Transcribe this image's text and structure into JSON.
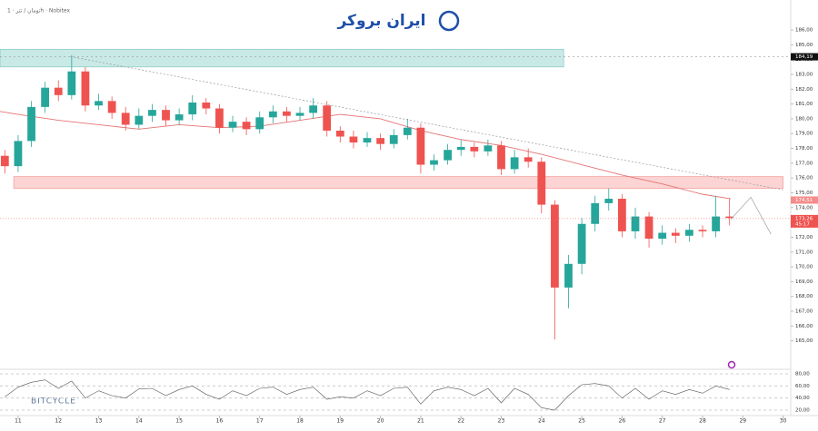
{
  "header": {
    "symbol": "تومان / تتر · 1h · Nobitex",
    "logo": "ایران بروکر",
    "watermark": "BITCYCLE"
  },
  "chart_data": {
    "type": "candlestick",
    "xlim": [
      10.55,
      30.19
    ],
    "xticks": [
      11,
      12,
      13,
      14,
      15,
      16,
      17,
      18,
      19,
      20,
      21,
      22,
      23,
      24,
      25,
      26,
      27,
      28,
      29,
      30
    ],
    "ylim": [
      163.2,
      186.8
    ],
    "yticks": [
      {
        "value": 186,
        "label": "186,00"
      },
      {
        "value": 185,
        "label": "185,00"
      },
      {
        "value": 184,
        "label": "184,00"
      },
      {
        "value": 183,
        "label": "183,00"
      },
      {
        "value": 182,
        "label": "182,00"
      },
      {
        "value": 181,
        "label": "181,00"
      },
      {
        "value": 180,
        "label": "180,00"
      },
      {
        "value": 179,
        "label": "179,00"
      },
      {
        "value": 178,
        "label": "178,00"
      },
      {
        "value": 177,
        "label": "177,00"
      },
      {
        "value": 176,
        "label": "176,00"
      },
      {
        "value": 175,
        "label": "175,00"
      },
      {
        "value": 174,
        "label": "174,00"
      },
      {
        "value": 173,
        "label": "173,00"
      },
      {
        "value": 172,
        "label": "172,00"
      },
      {
        "value": 171,
        "label": "171,00"
      },
      {
        "value": 170,
        "label": "170,00"
      },
      {
        "value": 169,
        "label": "169,00"
      },
      {
        "value": 168,
        "label": "168,00"
      },
      {
        "value": 167,
        "label": "167,00"
      },
      {
        "value": 166,
        "label": "166,00"
      },
      {
        "value": 165,
        "label": "165,00"
      }
    ],
    "up_color": "#26a69a",
    "down_color": "#ef5350",
    "candles": {
      "x": [
        10.67,
        11,
        11.33,
        11.67,
        12,
        12.33,
        12.67,
        13,
        13.33,
        13.67,
        14,
        14.33,
        14.67,
        15,
        15.33,
        15.67,
        16,
        16.33,
        16.67,
        17,
        17.33,
        17.67,
        18,
        18.33,
        18.67,
        19,
        19.33,
        19.67,
        20,
        20.33,
        20.67,
        21,
        21.33,
        21.67,
        22,
        22.33,
        22.67,
        23,
        23.33,
        23.67,
        24,
        24.33,
        24.67,
        25,
        25.33,
        25.67,
        26,
        26.33,
        26.67,
        27,
        27.33,
        27.67,
        28,
        28.33,
        28.67
      ],
      "open": [
        177.5,
        176.8,
        178.5,
        180.8,
        182.1,
        181.6,
        183.2,
        180.9,
        181.2,
        180.4,
        179.6,
        180.2,
        180.6,
        179.9,
        180.3,
        181.1,
        180.7,
        179.4,
        179.8,
        179.3,
        180.1,
        180.5,
        180.2,
        180.4,
        180.9,
        179.2,
        178.8,
        178.4,
        178.7,
        178.3,
        178.9,
        179.4,
        176.9,
        177.2,
        177.9,
        178.1,
        177.8,
        178.2,
        176.6,
        177.4,
        177.1,
        174.2,
        168.6,
        170.2,
        172.9,
        174.3,
        174.6,
        172.4,
        173.4,
        171.9,
        172.3,
        172.1,
        172.5,
        172.4,
        173.4
      ],
      "high": [
        177.9,
        178.9,
        181.2,
        182.5,
        182.6,
        184.3,
        183.5,
        181.7,
        181.5,
        180.8,
        180.7,
        181.0,
        180.9,
        180.7,
        181.6,
        181.4,
        181.0,
        180.2,
        180.1,
        180.5,
        180.9,
        180.8,
        180.8,
        181.4,
        181.2,
        179.5,
        179.2,
        179.1,
        179.0,
        179.3,
        180.0,
        179.7,
        177.6,
        178.3,
        178.6,
        178.4,
        178.6,
        178.5,
        177.9,
        178.0,
        177.4,
        174.5,
        170.8,
        173.3,
        174.8,
        175.3,
        174.9,
        174.0,
        173.7,
        172.8,
        172.6,
        172.9,
        172.8,
        174.8,
        174.6
      ],
      "low": [
        176.3,
        176.4,
        178.1,
        180.4,
        181.2,
        181.3,
        180.5,
        180.6,
        180.0,
        179.2,
        179.3,
        179.8,
        179.5,
        179.6,
        179.9,
        180.3,
        179.0,
        179.1,
        178.9,
        179.0,
        179.7,
        179.8,
        179.9,
        180.0,
        178.8,
        178.4,
        178.0,
        178.1,
        177.9,
        178.0,
        178.6,
        176.3,
        176.5,
        176.9,
        177.5,
        177.4,
        177.5,
        176.2,
        176.3,
        176.7,
        173.6,
        165.1,
        167.2,
        169.5,
        172.4,
        173.8,
        172.0,
        171.9,
        171.3,
        171.5,
        171.6,
        171.7,
        172.0,
        172.0,
        172.8
      ],
      "close": [
        176.8,
        178.5,
        180.8,
        182.1,
        181.6,
        183.2,
        180.9,
        181.2,
        180.4,
        179.6,
        180.2,
        180.6,
        179.9,
        180.3,
        181.1,
        180.7,
        179.4,
        179.8,
        179.3,
        180.1,
        180.5,
        180.2,
        180.4,
        180.9,
        179.2,
        178.8,
        178.4,
        178.7,
        178.3,
        178.9,
        179.4,
        176.9,
        177.2,
        177.9,
        178.1,
        177.8,
        178.2,
        176.6,
        177.4,
        177.1,
        174.2,
        168.6,
        170.2,
        172.9,
        174.3,
        174.6,
        172.4,
        173.4,
        171.9,
        172.3,
        172.1,
        172.5,
        172.4,
        173.4,
        173.3
      ]
    },
    "moving_average": {
      "color": "#e57373",
      "x": [
        10.55,
        11,
        12,
        13,
        14,
        15,
        16,
        17,
        18,
        19,
        20,
        21,
        22,
        23,
        24,
        25,
        26,
        27,
        28,
        28.7
      ],
      "values": [
        180.5,
        180.3,
        179.9,
        179.6,
        179.3,
        179.6,
        179.4,
        179.5,
        179.9,
        180.3,
        180.0,
        179.2,
        178.6,
        178.2,
        177.6,
        176.9,
        176.2,
        175.6,
        174.9,
        174.6
      ]
    },
    "zones": [
      {
        "color": "#26a69a",
        "x": [
          10.55,
          24.55
        ],
        "y": [
          183.5,
          184.7
        ]
      },
      {
        "color": "#ef5350",
        "x": [
          10.89,
          30.0
        ],
        "y": [
          175.3,
          176.1
        ]
      }
    ],
    "trend_line": {
      "x": [
        12.3,
        30.0
      ],
      "y": [
        184.2,
        175.2
      ]
    },
    "projection": {
      "x": [
        28.7,
        29.2,
        29.7
      ],
      "y": [
        173.2,
        174.7,
        172.2
      ]
    },
    "level": {
      "value": 184.19,
      "label": "184,19"
    },
    "last_price": {
      "value": 173.26,
      "label": "173,26",
      "countdown": "45:17"
    },
    "upper_price": {
      "value": 174.51,
      "label": "174,51"
    },
    "rsi": {
      "ylim": [
        12.5,
        87.5
      ],
      "yticks": [
        {
          "value": 80,
          "label": "80,00"
        },
        {
          "value": 60,
          "label": "60,00"
        },
        {
          "value": 40,
          "label": "40,00"
        },
        {
          "value": 20,
          "label": "20,00"
        }
      ],
      "values": [
        42,
        58,
        66,
        70,
        56,
        68,
        40,
        52,
        44,
        40,
        55,
        56,
        44,
        54,
        60,
        46,
        38,
        52,
        44,
        56,
        58,
        46,
        54,
        58,
        38,
        42,
        40,
        52,
        44,
        56,
        58,
        30,
        52,
        58,
        54,
        44,
        56,
        32,
        56,
        46,
        24,
        20,
        44,
        62,
        64,
        60,
        40,
        56,
        38,
        52,
        46,
        54,
        48,
        60,
        54
      ]
    }
  }
}
